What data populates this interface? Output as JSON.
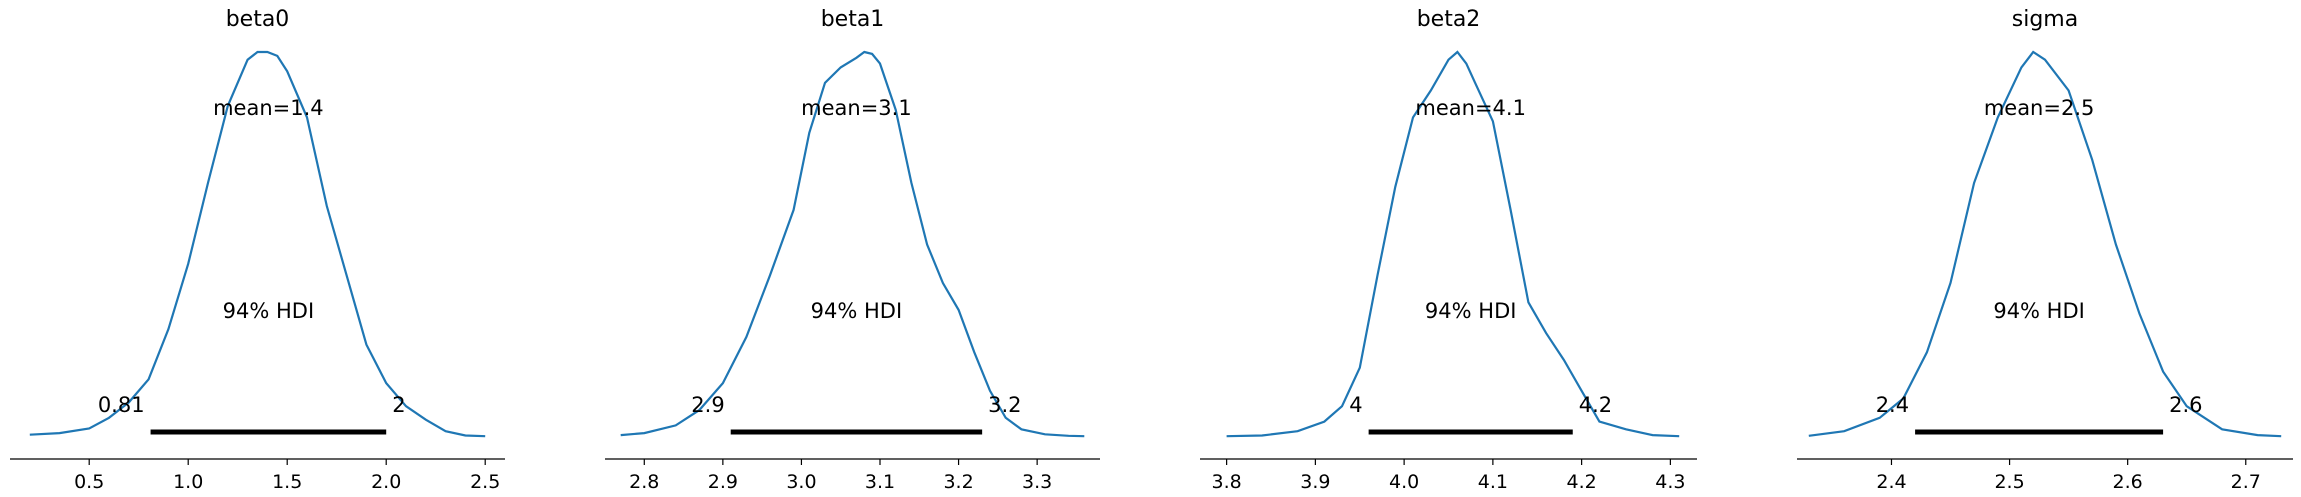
{
  "chart_data": [
    {
      "type": "line",
      "title": "beta0",
      "xlim": [
        0.1,
        2.6
      ],
      "xticks": [
        0.5,
        1.0,
        1.5,
        2.0,
        2.5
      ],
      "xtick_labels": [
        "0.5",
        "1.0",
        "1.5",
        "2.0",
        "2.5"
      ],
      "mean_label": "mean=1.4",
      "hdi_label": "94% HDI",
      "hdi": [
        0.81,
        2.0
      ],
      "hdi_low_label": "0.81",
      "hdi_high_label": "2",
      "curve": {
        "x": [
          0.2,
          0.35,
          0.5,
          0.6,
          0.7,
          0.8,
          0.9,
          1.0,
          1.1,
          1.2,
          1.3,
          1.35,
          1.4,
          1.45,
          1.5,
          1.6,
          1.7,
          1.8,
          1.9,
          2.0,
          2.1,
          2.2,
          2.3,
          2.4,
          2.5
        ],
        "y": [
          0.006,
          0.01,
          0.022,
          0.05,
          0.09,
          0.15,
          0.28,
          0.45,
          0.66,
          0.86,
          0.98,
          1.0,
          1.0,
          0.99,
          0.95,
          0.83,
          0.6,
          0.42,
          0.24,
          0.14,
          0.08,
          0.045,
          0.015,
          0.004,
          0.002
        ]
      }
    },
    {
      "type": "line",
      "title": "beta1",
      "xlim": [
        2.75,
        3.38
      ],
      "xticks": [
        2.8,
        2.9,
        3.0,
        3.1,
        3.2,
        3.3
      ],
      "xtick_labels": [
        "2.8",
        "2.9",
        "3.0",
        "3.1",
        "3.2",
        "3.3"
      ],
      "mean_label": "mean=3.1",
      "hdi_label": "94% HDI",
      "hdi": [
        2.91,
        3.23
      ],
      "hdi_low_label": "2.9",
      "hdi_high_label": "3.2",
      "curve": {
        "x": [
          2.77,
          2.8,
          2.84,
          2.87,
          2.9,
          2.93,
          2.96,
          2.99,
          3.01,
          3.03,
          3.05,
          3.07,
          3.08,
          3.09,
          3.1,
          3.12,
          3.14,
          3.16,
          3.18,
          3.2,
          3.22,
          3.24,
          3.26,
          3.28,
          3.31,
          3.34,
          3.36
        ],
        "y": [
          0.005,
          0.01,
          0.03,
          0.07,
          0.14,
          0.26,
          0.42,
          0.59,
          0.79,
          0.92,
          0.96,
          0.985,
          1.0,
          0.995,
          0.97,
          0.85,
          0.66,
          0.5,
          0.4,
          0.33,
          0.22,
          0.12,
          0.05,
          0.02,
          0.007,
          0.003,
          0.002
        ]
      }
    },
    {
      "type": "line",
      "title": "beta2",
      "xlim": [
        3.77,
        4.33
      ],
      "xticks": [
        3.8,
        3.9,
        4.0,
        4.1,
        4.2,
        4.3
      ],
      "xtick_labels": [
        "3.8",
        "3.9",
        "4.0",
        "4.1",
        "4.2",
        "4.3"
      ],
      "mean_label": "mean=4.1",
      "hdi_label": "94% HDI",
      "hdi": [
        3.96,
        4.19
      ],
      "hdi_low_label": "4",
      "hdi_high_label": "4.2",
      "curve": {
        "x": [
          3.8,
          3.84,
          3.88,
          3.91,
          3.93,
          3.95,
          3.97,
          3.99,
          4.01,
          4.03,
          4.05,
          4.06,
          4.07,
          4.08,
          4.1,
          4.12,
          4.14,
          4.16,
          4.18,
          4.2,
          4.22,
          4.25,
          4.28,
          4.31
        ],
        "y": [
          0.002,
          0.004,
          0.015,
          0.04,
          0.08,
          0.18,
          0.42,
          0.65,
          0.83,
          0.9,
          0.98,
          1.0,
          0.97,
          0.92,
          0.82,
          0.59,
          0.35,
          0.27,
          0.2,
          0.12,
          0.04,
          0.02,
          0.005,
          0.002
        ]
      }
    },
    {
      "type": "line",
      "title": "sigma",
      "xlim": [
        2.32,
        2.74
      ],
      "xticks": [
        2.4,
        2.5,
        2.6,
        2.7
      ],
      "xtick_labels": [
        "2.4",
        "2.5",
        "2.6",
        "2.7"
      ],
      "mean_label": "mean=2.5",
      "hdi_label": "94% HDI",
      "hdi": [
        2.42,
        2.63
      ],
      "hdi_low_label": "2.4",
      "hdi_high_label": "2.6",
      "curve": {
        "x": [
          2.33,
          2.36,
          2.39,
          2.41,
          2.43,
          2.45,
          2.47,
          2.49,
          2.51,
          2.52,
          2.53,
          2.55,
          2.57,
          2.59,
          2.61,
          2.63,
          2.65,
          2.68,
          2.71,
          2.73
        ],
        "y": [
          0.003,
          0.015,
          0.05,
          0.1,
          0.22,
          0.4,
          0.66,
          0.83,
          0.96,
          1.0,
          0.98,
          0.9,
          0.72,
          0.5,
          0.32,
          0.17,
          0.08,
          0.02,
          0.005,
          0.002
        ]
      }
    }
  ]
}
